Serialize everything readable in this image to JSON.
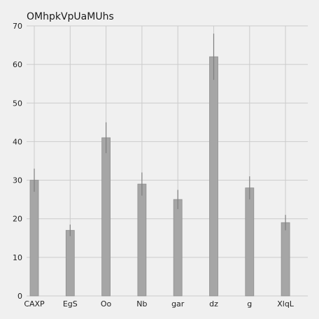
{
  "chart_data": {
    "type": "bar",
    "title": "OMhpkVpUaMUhs",
    "xlabel": "",
    "ylabel": "",
    "categories": [
      "CAXP",
      "EgS",
      "Oo",
      "Nb",
      "gar",
      "dz",
      "g",
      "XlqL"
    ],
    "values": [
      30,
      17,
      41,
      29,
      25,
      62,
      28,
      19
    ],
    "error": [
      [
        27,
        33
      ],
      [
        15.5,
        18.5
      ],
      [
        37,
        45
      ],
      [
        26,
        32
      ],
      [
        22.5,
        27.5
      ],
      [
        56,
        68
      ],
      [
        25,
        31
      ],
      [
        17,
        21
      ]
    ],
    "yticks": [
      0,
      10,
      20,
      30,
      40,
      50,
      60,
      70
    ],
    "ylim": [
      0,
      70
    ],
    "grid": true,
    "legend": "none",
    "colors": {
      "background": "#f0f0f0",
      "bar": "#a6a6a6",
      "bar_edge": "#8f8f8f",
      "grid": "#cbcbcb",
      "errorbar": "#7f7f7f",
      "text": "#222222"
    }
  }
}
